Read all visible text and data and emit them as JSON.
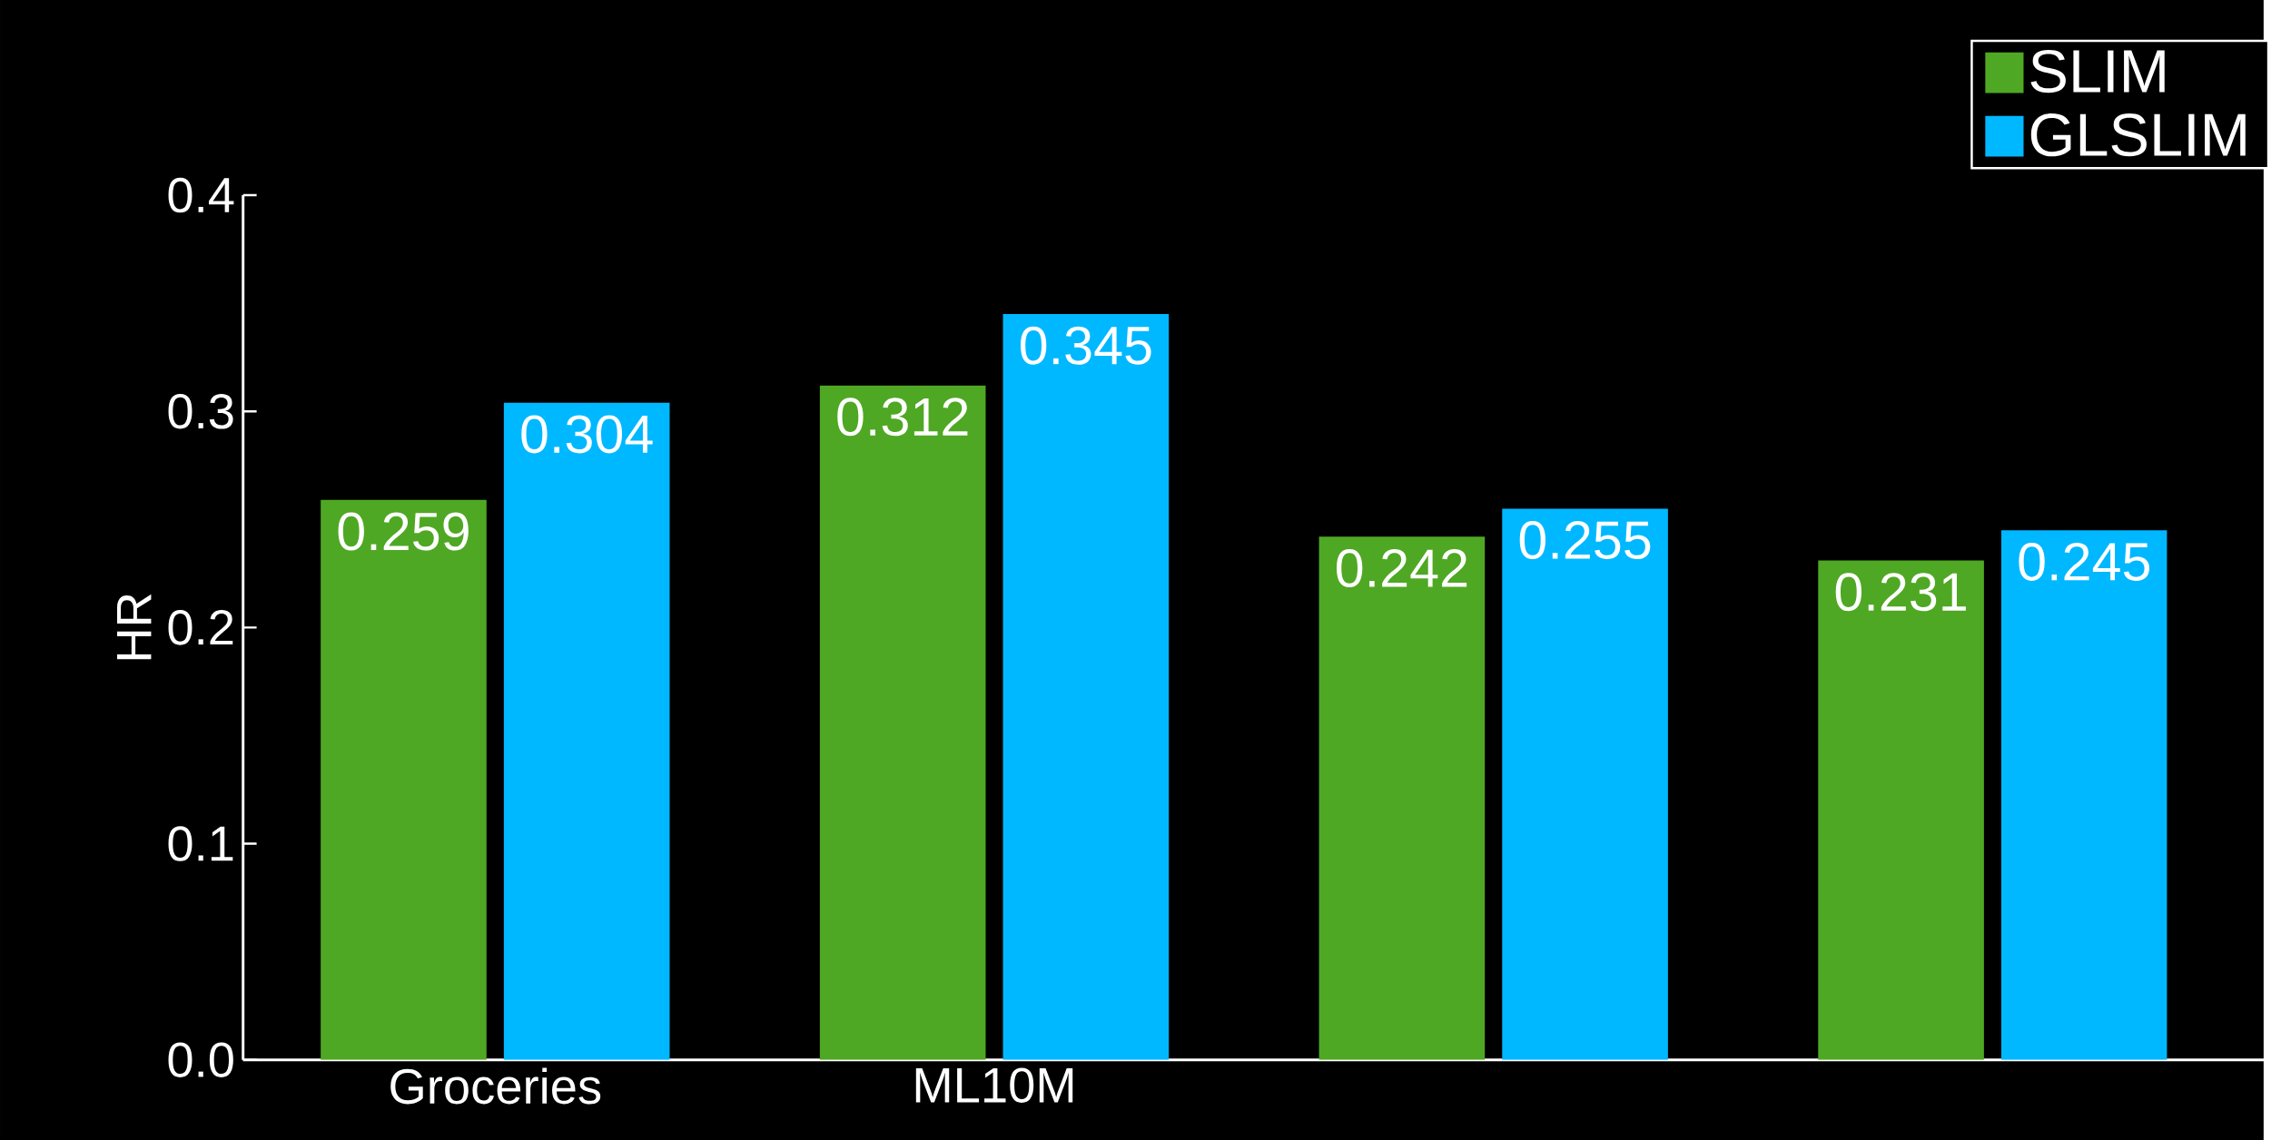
{
  "chart_data": {
    "type": "bar",
    "ylabel": "HR",
    "categories": [
      "Groceries",
      "ML10M",
      null,
      null
    ],
    "series": [
      {
        "name": "SLIM",
        "color": "#4fa823",
        "values": [
          0.259,
          0.312,
          0.242,
          0.231
        ]
      },
      {
        "name": "GLSLIM",
        "color": "#00b8ff",
        "values": [
          0.304,
          0.345,
          0.255,
          0.245
        ]
      }
    ],
    "ylim": [
      0,
      0.4
    ],
    "yticks": [
      {
        "value": 0,
        "label": "0.0"
      },
      0.1,
      0.2,
      0.3,
      0.4
    ],
    "data_labels": true,
    "legend": "top right",
    "grid": false
  }
}
